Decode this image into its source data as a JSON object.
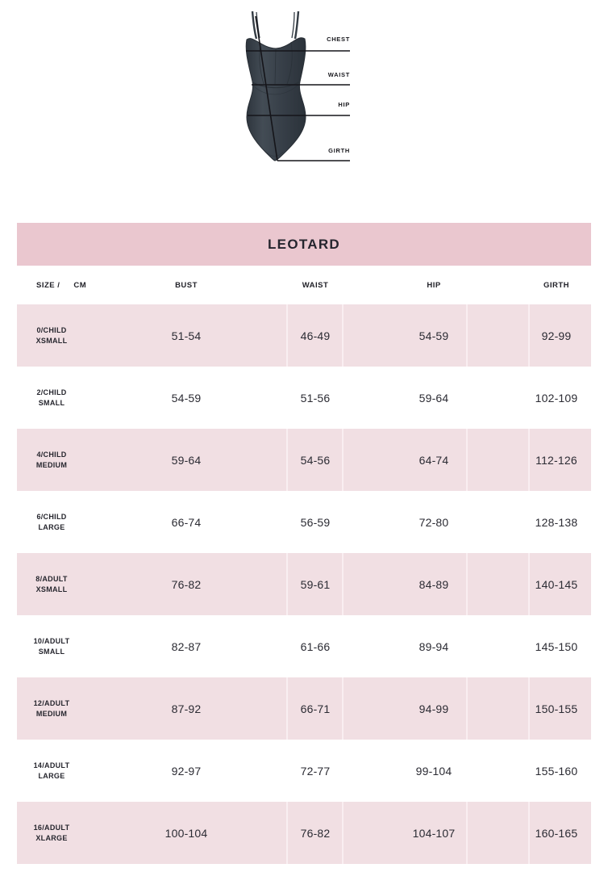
{
  "diagram": {
    "labels": {
      "chest": "CHEST",
      "waist": "WAIST",
      "hip": "HIP",
      "girth": "GIRTH"
    }
  },
  "chart": {
    "title": "LEOTARD",
    "size_header": "SIZE /",
    "unit_header": "CM",
    "columns": [
      "BUST",
      "WAIST",
      "HIP",
      "GIRTH"
    ],
    "rows": [
      {
        "size_line1": "0/CHILD",
        "size_line2": "XSMALL",
        "bust": "51-54",
        "waist": "46-49",
        "hip": "54-59",
        "girth": "92-99"
      },
      {
        "size_line1": "2/CHILD",
        "size_line2": "SMALL",
        "bust": "54-59",
        "waist": "51-56",
        "hip": "59-64",
        "girth": "102-109"
      },
      {
        "size_line1": "4/CHILD",
        "size_line2": "MEDIUM",
        "bust": "59-64",
        "waist": "54-56",
        "hip": "64-74",
        "girth": "112-126"
      },
      {
        "size_line1": "6/CHILD",
        "size_line2": "LARGE",
        "bust": "66-74",
        "waist": "56-59",
        "hip": "72-80",
        "girth": "128-138"
      },
      {
        "size_line1": "8/ADULT",
        "size_line2": "XSMALL",
        "bust": "76-82",
        "waist": "59-61",
        "hip": "84-89",
        "girth": "140-145"
      },
      {
        "size_line1": "10/ADULT",
        "size_line2": "SMALL",
        "bust": "82-87",
        "waist": "61-66",
        "hip": "89-94",
        "girth": "145-150"
      },
      {
        "size_line1": "12/ADULT",
        "size_line2": "MEDIUM",
        "bust": "87-92",
        "waist": "66-71",
        "hip": "94-99",
        "girth": "150-155"
      },
      {
        "size_line1": "14/ADULT",
        "size_line2": "LARGE",
        "bust": "92-97",
        "waist": "72-77",
        "hip": "99-104",
        "girth": "155-160"
      },
      {
        "size_line1": "16/ADULT",
        "size_line2": "XLARGE",
        "bust": "100-104",
        "waist": "76-82",
        "hip": "104-107",
        "girth": "160-165"
      }
    ]
  },
  "colors": {
    "title_band": "#EAC7CF",
    "row_pink": "#F1DFE3",
    "row_divider": "#F9EEF1",
    "text_dark": "#2B2B33",
    "garment_fill": "#3A424B"
  }
}
